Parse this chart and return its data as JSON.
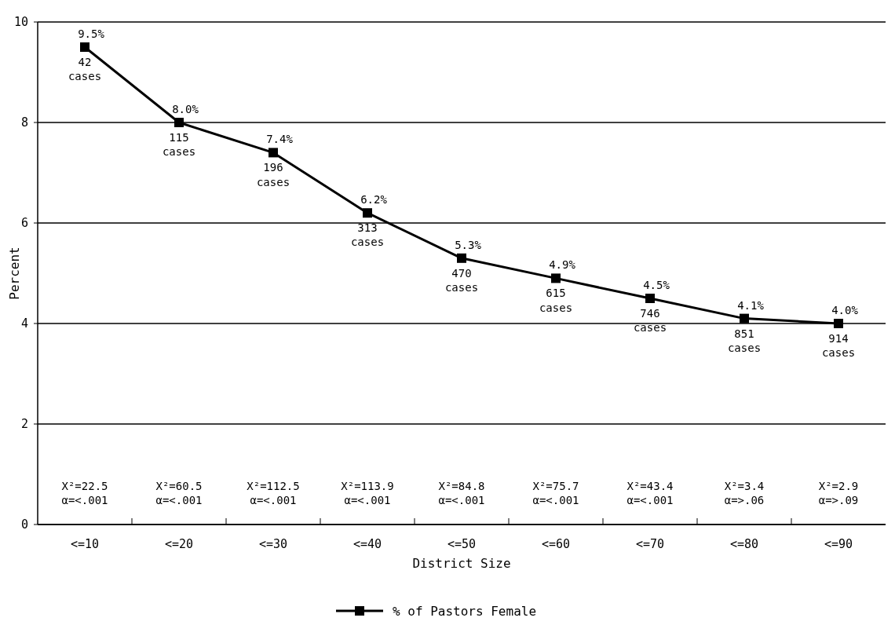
{
  "chart_data": {
    "type": "line",
    "xlabel": "District Size",
    "ylabel": "Percent",
    "categories": [
      "<=10",
      "<=20",
      "<=30",
      "<=40",
      "<=50",
      "<=60",
      "<=70",
      "<=80",
      "<=90"
    ],
    "series": [
      {
        "name": "% of Pastors Female",
        "color": "#000000",
        "values": [
          9.5,
          8.0,
          7.4,
          6.2,
          5.3,
          4.9,
          4.5,
          4.1,
          4.0
        ],
        "value_labels": [
          "9.5%",
          "8.0%",
          "7.4%",
          "6.2%",
          "5.3%",
          "4.9%",
          "4.5%",
          "4.1%",
          "4.0%"
        ]
      }
    ],
    "ylim": [
      0,
      10
    ],
    "yticks": [
      0,
      2,
      4,
      6,
      8,
      10
    ],
    "grid": "y",
    "legend": "bottom",
    "marker": "square",
    "line_style": "solid",
    "annotations": [
      {
        "text": "42 cases",
        "x": "<=10",
        "y": 9.5
      },
      {
        "text": "115 cases",
        "x": "<=20",
        "y": 8.0
      },
      {
        "text": "196 cases",
        "x": "<=30",
        "y": 7.4
      },
      {
        "text": "313 cases",
        "x": "<=40",
        "y": 6.2
      },
      {
        "text": "470 cases",
        "x": "<=50",
        "y": 5.3
      },
      {
        "text": "615 cases",
        "x": "<=60",
        "y": 4.9
      },
      {
        "text": "746 cases",
        "x": "<=70",
        "y": 4.5
      },
      {
        "text": "851 cases",
        "x": "<=80",
        "y": 4.1
      },
      {
        "text": "914 cases",
        "x": "<=90",
        "y": 4.0
      },
      "X²=22.5 α=<.001",
      "X²=60.5 α=<.001",
      "X²=112.5 α=<.001",
      "X²=113.9 α=<.001",
      "X²=84.8 α=<.001",
      "X²=75.7 α=<.001",
      "X²=43.4 α=<.001",
      "X²=3.4 α=>.06",
      "X²=2.9 α=>.09"
    ]
  }
}
